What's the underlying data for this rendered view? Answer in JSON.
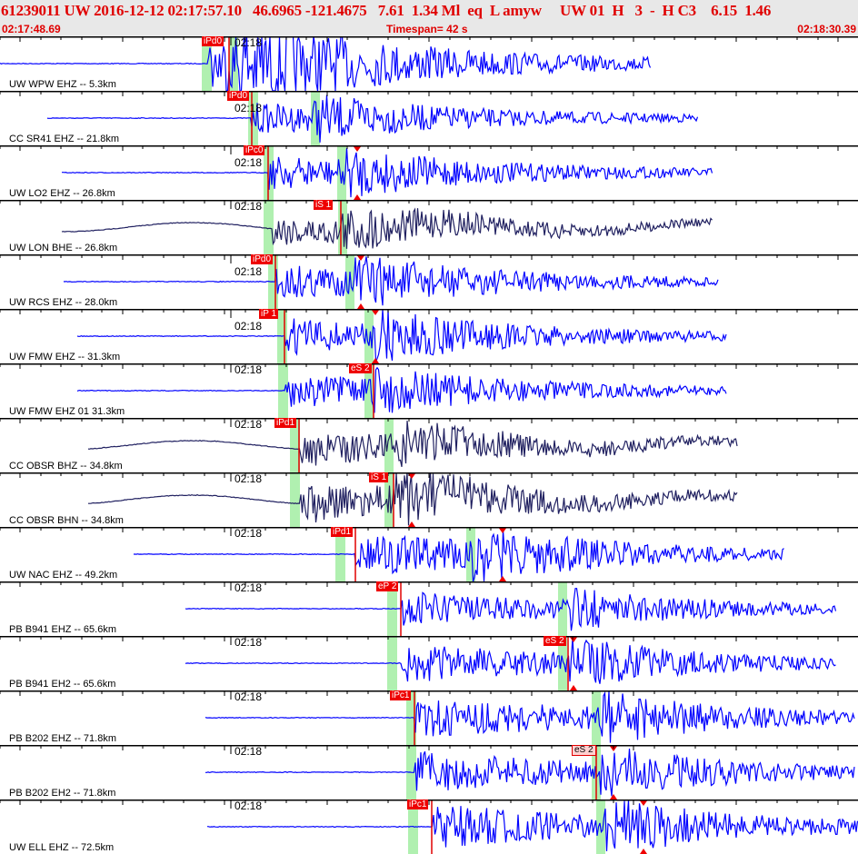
{
  "header": {
    "title": "61239011 UW 2016-12-12 02:17:57.10   46.6965 -121.4675   7.61  1.34 Ml  eq  L amyw     UW 01  H   3  -  H C3    6.15  1.46",
    "start_time": "02:17:48.69",
    "timespan": "Timespan=  42 s",
    "end_time": "02:18:30.39"
  },
  "colors": {
    "header_text": "#e00000",
    "short_period_trace": "#0000ff",
    "broadband_trace": "#202060",
    "pick": "#ee0000",
    "window": "#b0f0b0"
  },
  "time_label": "02:18",
  "channels": [
    {
      "label": "UW WPW EHZ -- 5.3km",
      "pick": "iPd0"
    },
    {
      "label": "CC SR41 EHZ -- 21.8km",
      "pick": "iPd0"
    },
    {
      "label": "UW LO2 EHZ -- 26.8km",
      "pick": "iPc0"
    },
    {
      "label": "UW LON BHE -- 26.8km",
      "pick": "iS 1"
    },
    {
      "label": "UW RCS EHZ -- 28.0km",
      "pick": "iPd0"
    },
    {
      "label": "UW FMW EHZ -- 31.3km",
      "pick": "iP 1"
    },
    {
      "label": "UW FMW EHZ 01 31.3km",
      "pick": "eS 2"
    },
    {
      "label": "CC OBSR BHZ -- 34.8km",
      "pick": "iPd1"
    },
    {
      "label": "CC OBSR BHN -- 34.8km",
      "pick": "iS 1"
    },
    {
      "label": "UW NAC EHZ -- 49.2km",
      "pick": "iPd1"
    },
    {
      "label": "PB B941 EHZ -- 65.6km",
      "pick": "eP 2"
    },
    {
      "label": "PB B941 EH2 -- 65.6km",
      "pick": "eS 2"
    },
    {
      "label": "PB B202 EHZ -- 71.8km",
      "pick": "iPc1"
    },
    {
      "label": "PB B202 EH2 -- 71.8km",
      "pick": "eS 2"
    },
    {
      "label": "UW ELL EHZ -- 72.5km",
      "pick": "iPc1"
    }
  ]
}
